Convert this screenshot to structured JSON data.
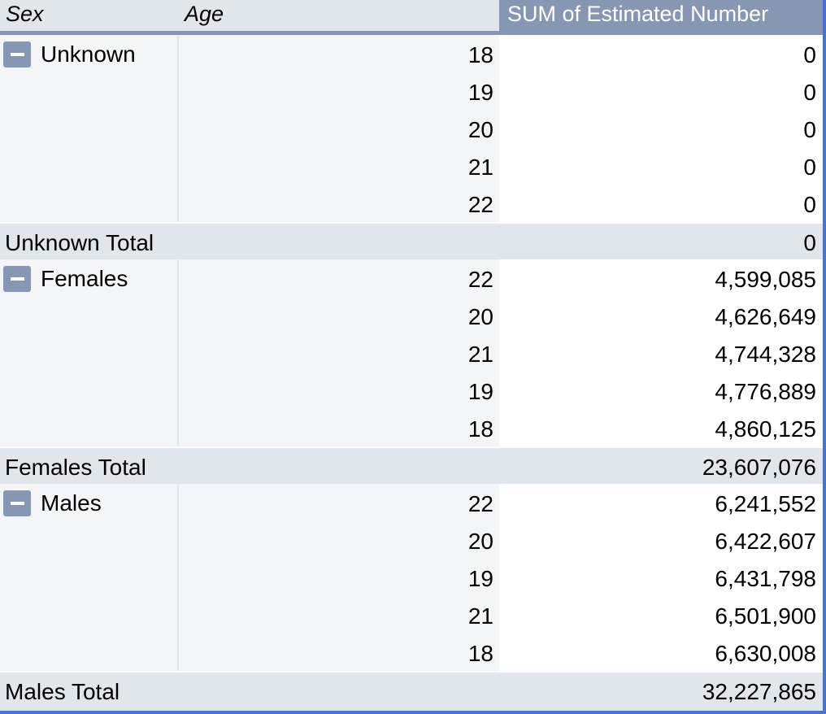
{
  "headers": {
    "sex": "Sex",
    "age": "Age",
    "value": "SUM of Estimated Number"
  },
  "groups": [
    {
      "label": "Unknown",
      "rows": [
        {
          "age": "18",
          "value": "0"
        },
        {
          "age": "19",
          "value": "0"
        },
        {
          "age": "20",
          "value": "0"
        },
        {
          "age": "21",
          "value": "0"
        },
        {
          "age": "22",
          "value": "0"
        }
      ],
      "total_label": "Unknown Total",
      "total_value": "0"
    },
    {
      "label": "Females",
      "rows": [
        {
          "age": "22",
          "value": "4,599,085"
        },
        {
          "age": "20",
          "value": "4,626,649"
        },
        {
          "age": "21",
          "value": "4,744,328"
        },
        {
          "age": "19",
          "value": "4,776,889"
        },
        {
          "age": "18",
          "value": "4,860,125"
        }
      ],
      "total_label": "Females Total",
      "total_value": "23,607,076"
    },
    {
      "label": "Males",
      "rows": [
        {
          "age": "22",
          "value": "6,241,552"
        },
        {
          "age": "20",
          "value": "6,422,607"
        },
        {
          "age": "19",
          "value": "6,431,798"
        },
        {
          "age": "21",
          "value": "6,501,900"
        },
        {
          "age": "18",
          "value": "6,630,008"
        }
      ],
      "total_label": "Males Total",
      "total_value": "32,227,865"
    }
  ],
  "colors": {
    "header_value_bg": "#8796b3",
    "header_bg": "#e1e5ec",
    "row_label_bg": "#f3f5f8",
    "total_bg": "#e1e5ec",
    "frame": "#4a74c9"
  },
  "icons": {
    "collapse": "minus-collapse-icon"
  }
}
